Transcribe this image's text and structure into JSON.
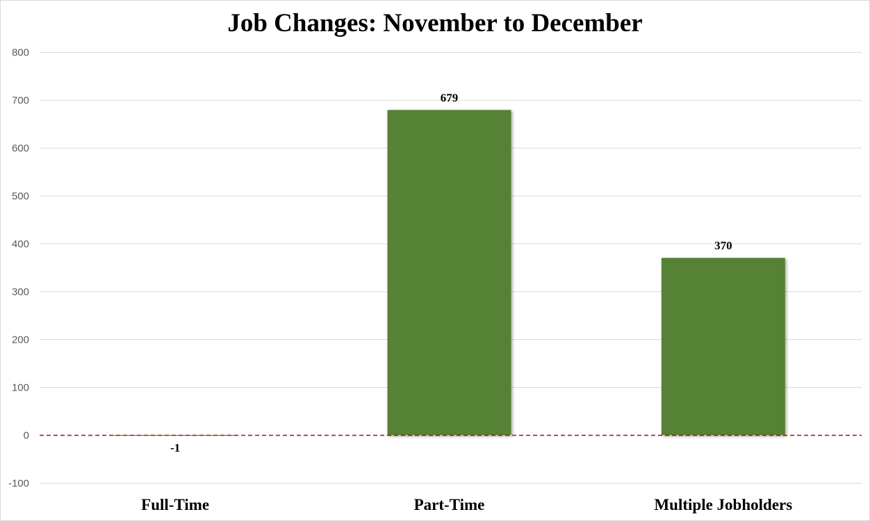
{
  "chart_data": {
    "type": "bar",
    "title": "Job Changes: November to December",
    "xlabel": "",
    "ylabel": "",
    "categories": [
      "Full-Time",
      "Part-Time",
      "Multiple Jobholders"
    ],
    "values": [
      -1,
      679,
      370
    ],
    "data_labels": [
      "-1",
      "679",
      "370"
    ],
    "ylim": [
      -100,
      800
    ],
    "yticks": [
      -100,
      0,
      100,
      200,
      300,
      400,
      500,
      600,
      700,
      800
    ],
    "grid": true,
    "legend": "none",
    "zero_line": "dashed",
    "colors": {
      "bar": "#548235",
      "zero_line": "#c00000",
      "grid": "#d9d9d9"
    }
  }
}
